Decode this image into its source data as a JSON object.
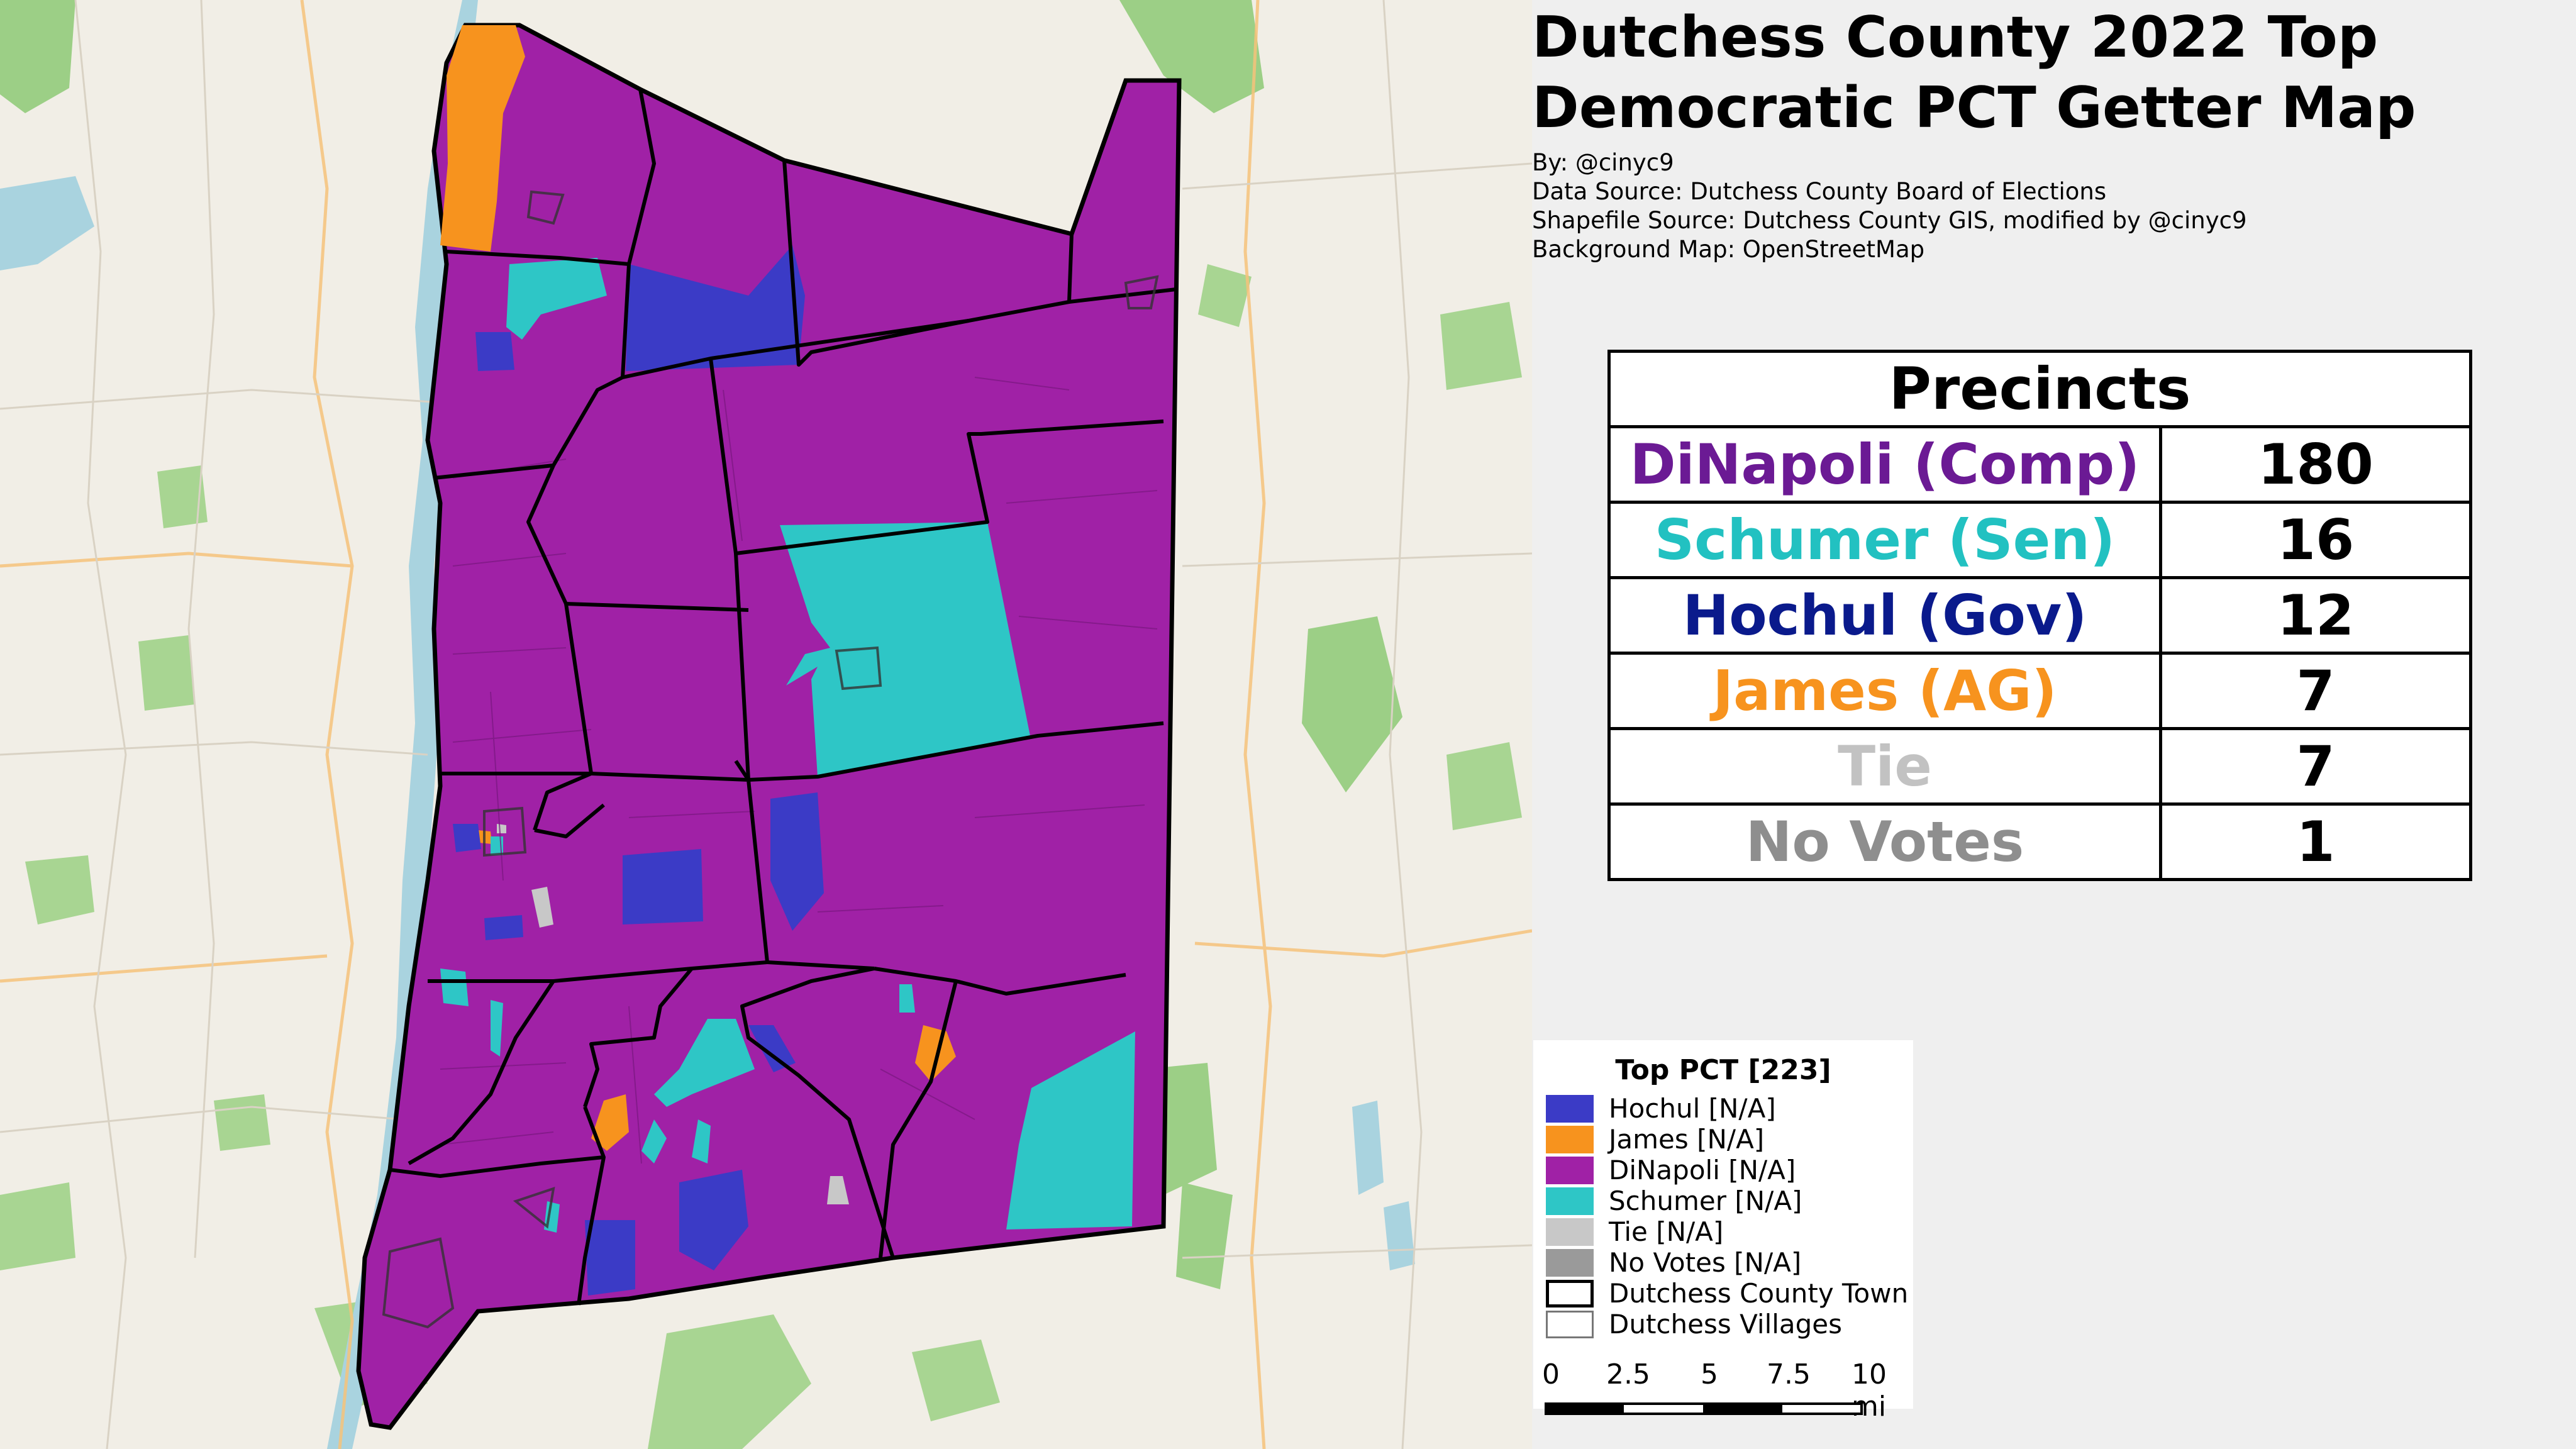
{
  "title": "Dutchess County 2022 Top Democratic PCT Getter Map",
  "credits": [
    "By: @cinyc9",
    "Data Source: Dutchess County Board of Elections",
    "Shapefile Source: Dutchess County GIS, modified by @cinyc9",
    "Background Map: OpenStreetMap"
  ],
  "table": {
    "header": "Precincts",
    "rows": [
      {
        "name": "DiNapoli (Comp)",
        "count": "180",
        "color": "#6b1a94"
      },
      {
        "name": "Schumer (Sen)",
        "count": "16",
        "color": "#22c1c1"
      },
      {
        "name": "Hochul (Gov)",
        "count": "12",
        "color": "#0a1a8c"
      },
      {
        "name": "James (AG)",
        "count": "7",
        "color": "#f7931e"
      },
      {
        "name": "Tie",
        "count": "7",
        "color": "#c2c2c2"
      },
      {
        "name": "No Votes",
        "count": "1",
        "color": "#8e8e8e"
      }
    ]
  },
  "legend": {
    "title": "Top PCT [223]",
    "items": [
      {
        "label": "Hochul [N/A]",
        "color": "#3b3bc6",
        "style": "fill"
      },
      {
        "label": "James [N/A]",
        "color": "#f7931e",
        "style": "fill"
      },
      {
        "label": "DiNapoli [N/A]",
        "color": "#a021a6",
        "style": "fill"
      },
      {
        "label": "Schumer [N/A]",
        "color": "#2ec6c6",
        "style": "fill"
      },
      {
        "label": "Tie [N/A]",
        "color": "#c8c8c8",
        "style": "fill"
      },
      {
        "label": "No Votes [N/A]",
        "color": "#9a9a9a",
        "style": "fill"
      },
      {
        "label": "Dutchess County Town",
        "color": "#000000",
        "style": "outline-thick"
      },
      {
        "label": "Dutchess Villages",
        "color": "#777777",
        "style": "outline-thin"
      }
    ]
  },
  "scale": {
    "labels": [
      "0",
      "2.5",
      "5",
      "7.5",
      "10 mi"
    ]
  },
  "colors": {
    "dinapoli": "#a021a6",
    "schumer": "#2ec6c6",
    "hochul": "#3b3bc6",
    "james": "#f7931e",
    "tie": "#c8c8c8",
    "novotes": "#9a9a9a",
    "basemap": "#f1eee6",
    "forest": "#9ccf86",
    "water": "#a9d3df"
  }
}
